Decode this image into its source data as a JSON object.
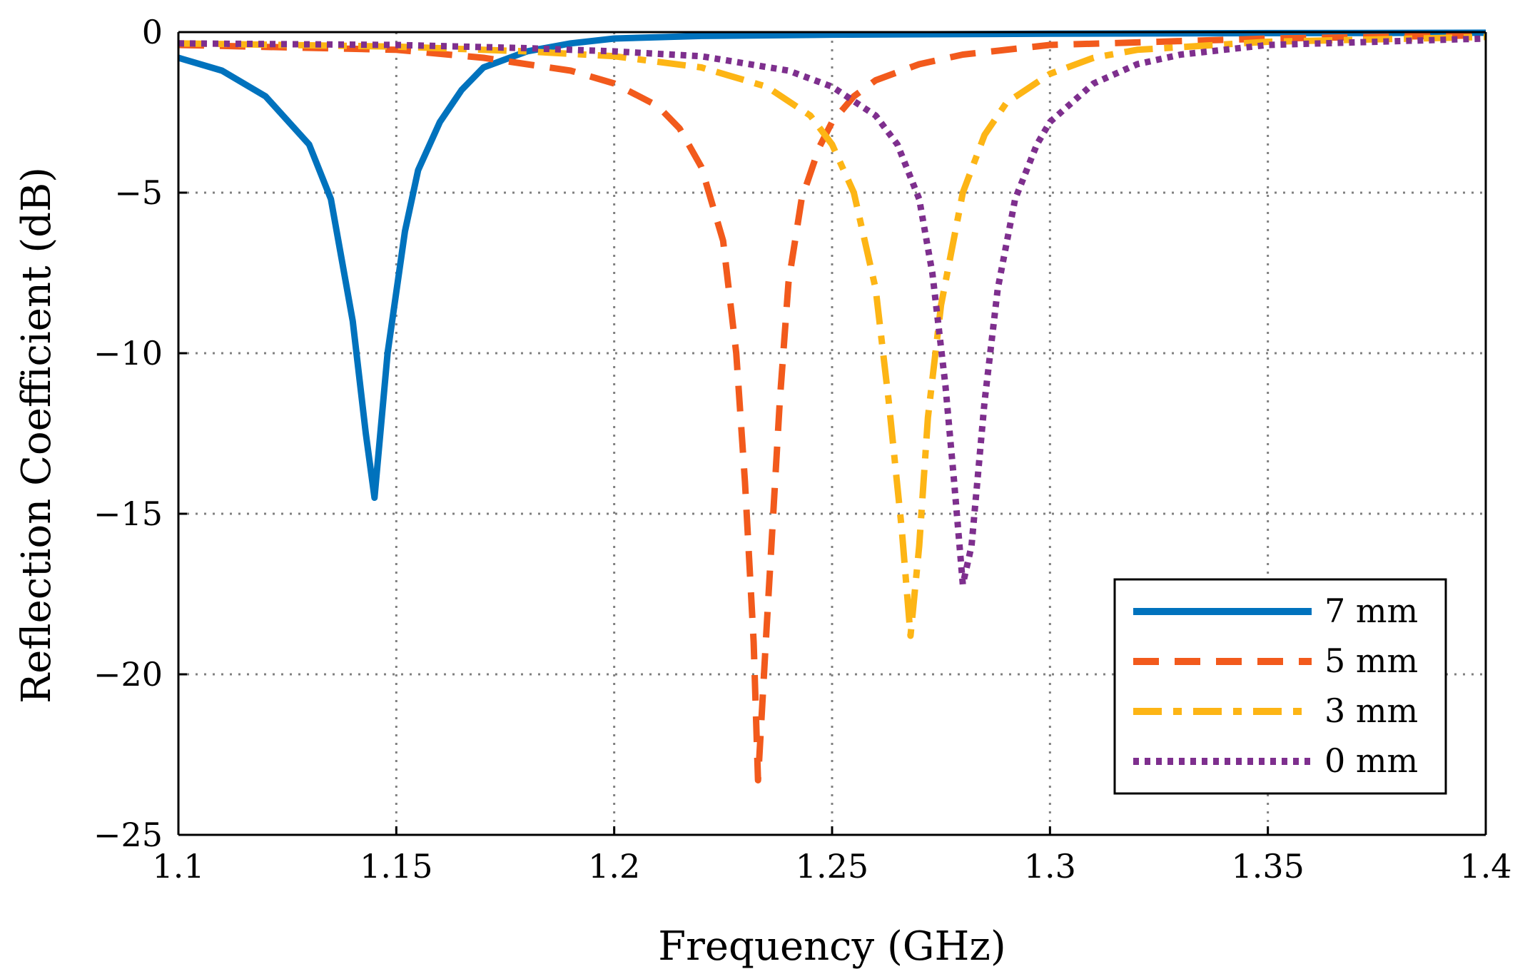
{
  "chart_data": {
    "type": "line",
    "title": "",
    "xlabel": "Frequency (GHz)",
    "ylabel": "Reflection Coefficient (dB)",
    "xlim": [
      1.1,
      1.4
    ],
    "ylim": [
      -25,
      0
    ],
    "xticks": [
      1.1,
      1.15,
      1.2,
      1.25,
      1.3,
      1.35,
      1.4
    ],
    "xtick_labels": [
      "1.1",
      "1.15",
      "1.2",
      "1.25",
      "1.3",
      "1.35",
      "1.4"
    ],
    "yticks": [
      0,
      -5,
      -10,
      -15,
      -20,
      -25
    ],
    "ytick_labels": [
      "0",
      "−5",
      "−10",
      "−15",
      "−20",
      "−25"
    ],
    "grid": true,
    "legend_position": "bottom-right",
    "series": [
      {
        "name": "7 mm",
        "color": "#0072bd",
        "style": "solid",
        "points": [
          [
            1.1,
            -0.8
          ],
          [
            1.11,
            -1.2
          ],
          [
            1.12,
            -2.0
          ],
          [
            1.13,
            -3.5
          ],
          [
            1.135,
            -5.2
          ],
          [
            1.14,
            -9.0
          ],
          [
            1.143,
            -12.5
          ],
          [
            1.145,
            -14.5
          ],
          [
            1.148,
            -10.0
          ],
          [
            1.152,
            -6.2
          ],
          [
            1.155,
            -4.3
          ],
          [
            1.16,
            -2.8
          ],
          [
            1.165,
            -1.8
          ],
          [
            1.17,
            -1.1
          ],
          [
            1.18,
            -0.6
          ],
          [
            1.19,
            -0.35
          ],
          [
            1.2,
            -0.2
          ],
          [
            1.22,
            -0.12
          ],
          [
            1.25,
            -0.08
          ],
          [
            1.3,
            -0.05
          ],
          [
            1.35,
            -0.03
          ],
          [
            1.4,
            -0.02
          ]
        ]
      },
      {
        "name": "5 mm",
        "color": "#f25a1c",
        "style": "dashed",
        "points": [
          [
            1.1,
            -0.4
          ],
          [
            1.15,
            -0.55
          ],
          [
            1.17,
            -0.8
          ],
          [
            1.19,
            -1.2
          ],
          [
            1.2,
            -1.6
          ],
          [
            1.21,
            -2.3
          ],
          [
            1.215,
            -3.0
          ],
          [
            1.22,
            -4.2
          ],
          [
            1.225,
            -6.5
          ],
          [
            1.228,
            -10.0
          ],
          [
            1.23,
            -14.0
          ],
          [
            1.232,
            -19.0
          ],
          [
            1.233,
            -23.3
          ],
          [
            1.235,
            -18.5
          ],
          [
            1.238,
            -11.5
          ],
          [
            1.24,
            -7.8
          ],
          [
            1.243,
            -5.2
          ],
          [
            1.247,
            -3.6
          ],
          [
            1.25,
            -2.8
          ],
          [
            1.255,
            -2.0
          ],
          [
            1.26,
            -1.5
          ],
          [
            1.27,
            -1.0
          ],
          [
            1.28,
            -0.7
          ],
          [
            1.3,
            -0.4
          ],
          [
            1.35,
            -0.2
          ],
          [
            1.4,
            -0.1
          ]
        ]
      },
      {
        "name": "3 mm",
        "color": "#fdb515",
        "style": "dashdot",
        "points": [
          [
            1.1,
            -0.35
          ],
          [
            1.15,
            -0.45
          ],
          [
            1.18,
            -0.6
          ],
          [
            1.2,
            -0.75
          ],
          [
            1.22,
            -1.1
          ],
          [
            1.235,
            -1.7
          ],
          [
            1.245,
            -2.6
          ],
          [
            1.25,
            -3.5
          ],
          [
            1.255,
            -5.0
          ],
          [
            1.26,
            -8.0
          ],
          [
            1.263,
            -11.5
          ],
          [
            1.266,
            -15.5
          ],
          [
            1.268,
            -18.8
          ],
          [
            1.27,
            -16.0
          ],
          [
            1.272,
            -12.0
          ],
          [
            1.275,
            -8.5
          ],
          [
            1.28,
            -5.0
          ],
          [
            1.285,
            -3.2
          ],
          [
            1.29,
            -2.2
          ],
          [
            1.3,
            -1.3
          ],
          [
            1.31,
            -0.8
          ],
          [
            1.32,
            -0.55
          ],
          [
            1.35,
            -0.3
          ],
          [
            1.4,
            -0.15
          ]
        ]
      },
      {
        "name": "0 mm",
        "color": "#7e2f8e",
        "style": "dotted",
        "points": [
          [
            1.1,
            -0.35
          ],
          [
            1.15,
            -0.4
          ],
          [
            1.18,
            -0.5
          ],
          [
            1.2,
            -0.6
          ],
          [
            1.22,
            -0.75
          ],
          [
            1.24,
            -1.2
          ],
          [
            1.25,
            -1.7
          ],
          [
            1.26,
            -2.6
          ],
          [
            1.265,
            -3.5
          ],
          [
            1.27,
            -5.2
          ],
          [
            1.273,
            -7.5
          ],
          [
            1.276,
            -11.0
          ],
          [
            1.278,
            -14.0
          ],
          [
            1.28,
            -17.2
          ],
          [
            1.282,
            -16.0
          ],
          [
            1.285,
            -11.5
          ],
          [
            1.288,
            -8.0
          ],
          [
            1.292,
            -5.2
          ],
          [
            1.297,
            -3.5
          ],
          [
            1.3,
            -2.8
          ],
          [
            1.31,
            -1.6
          ],
          [
            1.32,
            -1.0
          ],
          [
            1.33,
            -0.7
          ],
          [
            1.35,
            -0.4
          ],
          [
            1.4,
            -0.2
          ]
        ]
      }
    ]
  }
}
